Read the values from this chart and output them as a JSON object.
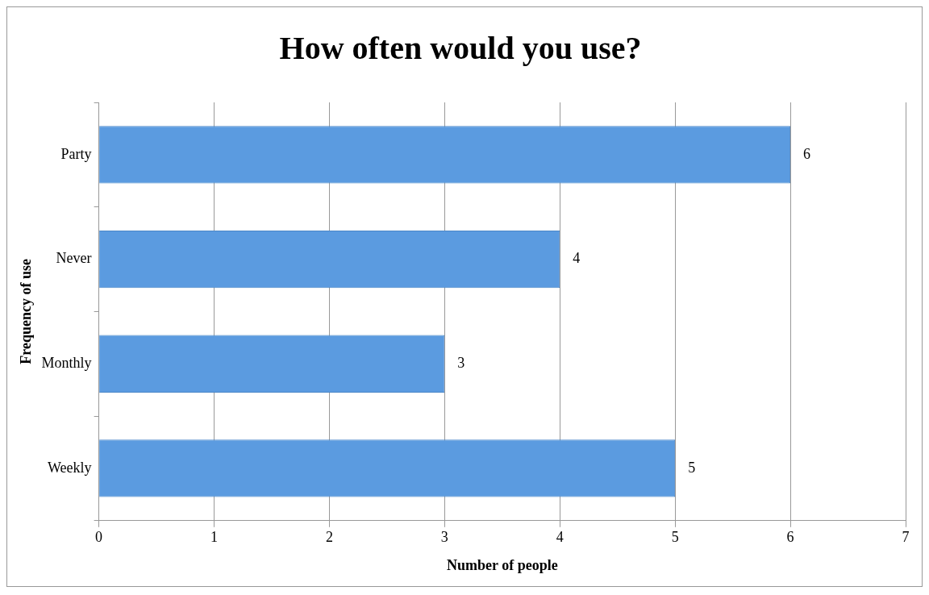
{
  "chart_data": {
    "type": "bar",
    "orientation": "horizontal",
    "title": "How often would you use?",
    "xlabel": "Number of people",
    "ylabel": "Frequency of use",
    "categories": [
      "Party",
      "Never",
      "Monthly",
      "Weekly"
    ],
    "values": [
      6,
      4,
      3,
      5
    ],
    "color": "#5b9be0",
    "xlim": [
      0,
      7
    ],
    "xticks": [
      0,
      1,
      2,
      3,
      4,
      5,
      6,
      7
    ],
    "grid": "x",
    "data_labels": true
  }
}
